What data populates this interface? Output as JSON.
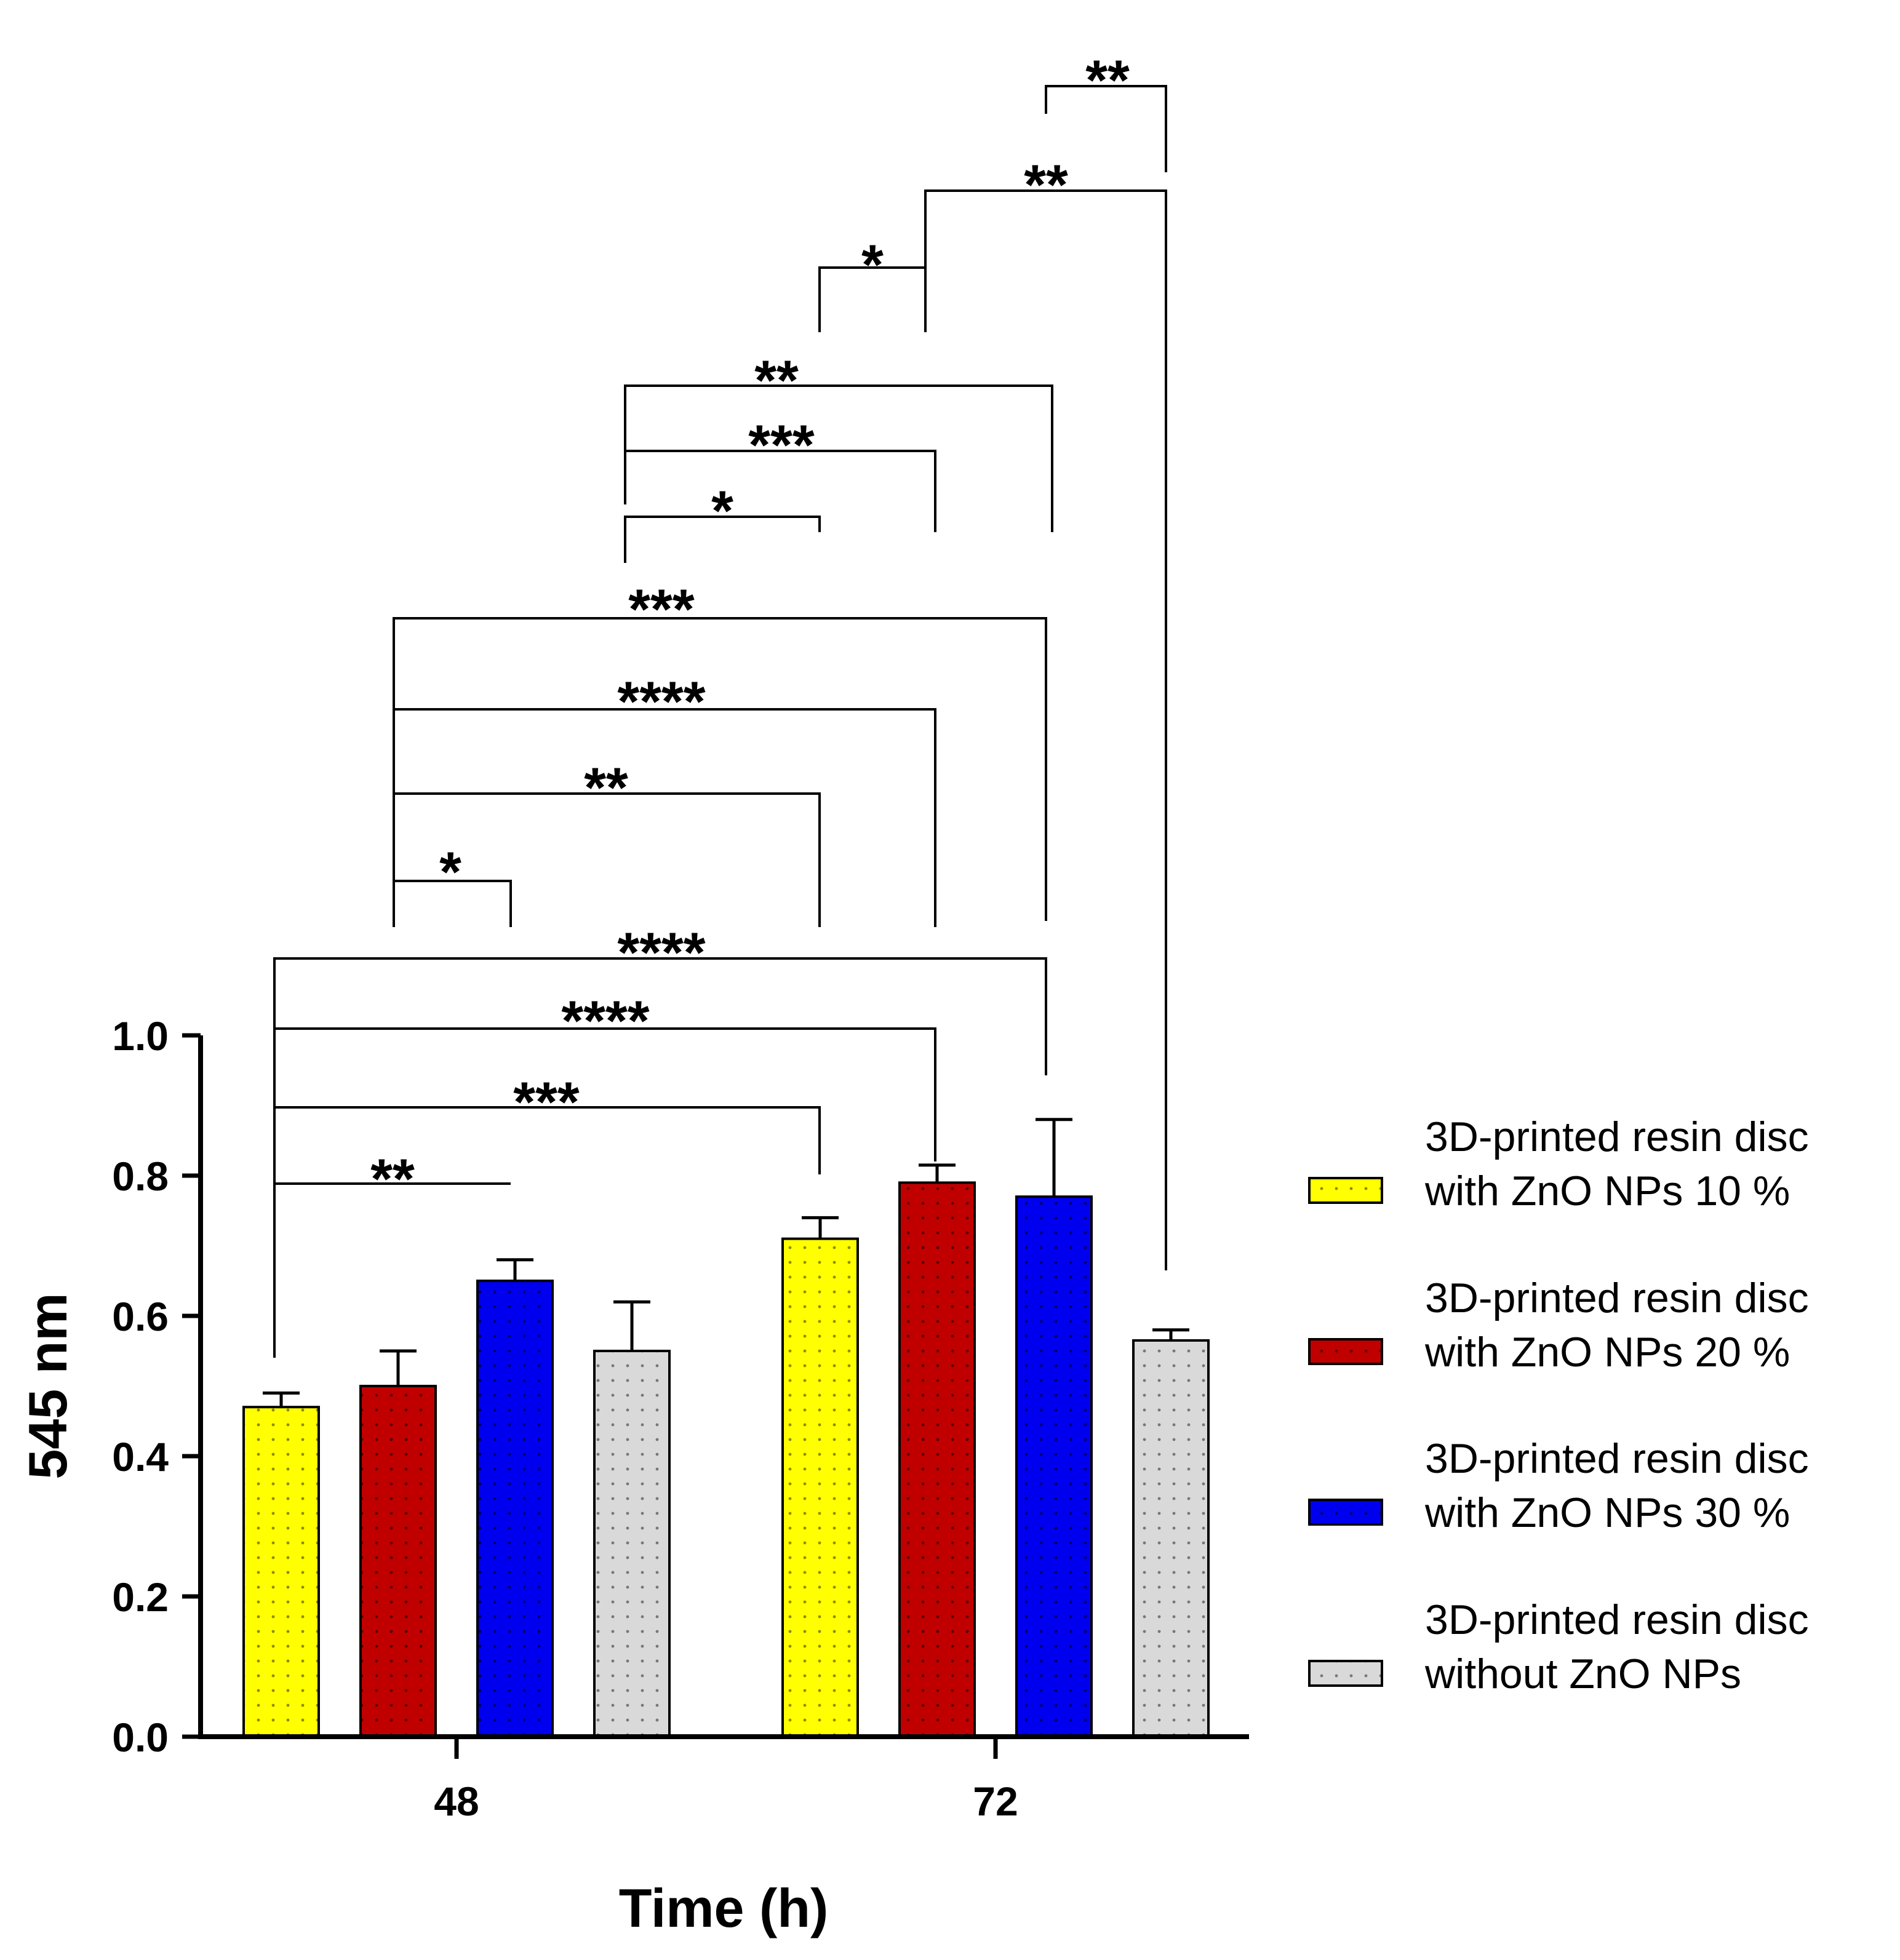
{
  "chart_data": {
    "type": "bar",
    "title": "",
    "xlabel": "Time (h)",
    "ylabel": "545 nm",
    "ylim": [
      0,
      1.0
    ],
    "yticks": [
      "0.0",
      "0.2",
      "0.4",
      "0.6",
      "0.8",
      "1.0"
    ],
    "categories": [
      "48",
      "72"
    ],
    "series": [
      {
        "name": "3D-printed resin disc with ZnO NPs 10 %",
        "legend_lines": [
          "3D-printed resin disc",
          "with ZnO NPs 10 %"
        ],
        "color": "#ffff00",
        "values": [
          0.47,
          0.71
        ],
        "errors": [
          0.02,
          0.03
        ]
      },
      {
        "name": "3D-printed resin disc with ZnO NPs 20 %",
        "legend_lines": [
          "3D-printed resin disc",
          "with ZnO NPs 20 %"
        ],
        "color": "#c00000",
        "values": [
          0.5,
          0.79
        ],
        "errors": [
          0.05,
          0.025
        ]
      },
      {
        "name": "3D-printed resin disc with ZnO NPs 30 %",
        "legend_lines": [
          "3D-printed resin disc",
          "with ZnO NPs 30 %"
        ],
        "color": "#0000ee",
        "values": [
          0.65,
          0.77
        ],
        "errors": [
          0.03,
          0.11
        ]
      },
      {
        "name": "3D-printed resin disc without ZnO NPs",
        "legend_lines": [
          "3D-printed resin disc",
          "without ZnO NPs"
        ],
        "color": "#d9d9d9",
        "values": [
          0.55,
          0.565
        ],
        "errors": [
          0.07,
          0.015
        ]
      }
    ],
    "legend_position": "right",
    "significance": [
      {
        "from": [
          0,
          0
        ],
        "to": [
          0,
          2
        ],
        "label": "**"
      },
      {
        "from": [
          0,
          0
        ],
        "to": [
          1,
          0
        ],
        "label": "***"
      },
      {
        "from": [
          0,
          0
        ],
        "to": [
          1,
          1
        ],
        "label": "****"
      },
      {
        "from": [
          0,
          0
        ],
        "to": [
          1,
          2
        ],
        "label": "****"
      },
      {
        "from": [
          0,
          1
        ],
        "to": [
          0,
          2
        ],
        "label": "*"
      },
      {
        "from": [
          0,
          1
        ],
        "to": [
          1,
          0
        ],
        "label": "**"
      },
      {
        "from": [
          0,
          1
        ],
        "to": [
          1,
          1
        ],
        "label": "****"
      },
      {
        "from": [
          0,
          1
        ],
        "to": [
          1,
          2
        ],
        "label": "***"
      },
      {
        "from": [
          0,
          3
        ],
        "to": [
          1,
          0
        ],
        "label": "*"
      },
      {
        "from": [
          0,
          3
        ],
        "to": [
          1,
          1
        ],
        "label": "***"
      },
      {
        "from": [
          0,
          3
        ],
        "to": [
          1,
          2
        ],
        "label": "**"
      },
      {
        "from": [
          1,
          0
        ],
        "to": [
          1,
          1
        ],
        "label": "*"
      },
      {
        "from": [
          1,
          1
        ],
        "to": [
          1,
          3
        ],
        "label": "**"
      },
      {
        "from": [
          1,
          2
        ],
        "to": [
          1,
          3
        ],
        "label": "**"
      }
    ]
  }
}
